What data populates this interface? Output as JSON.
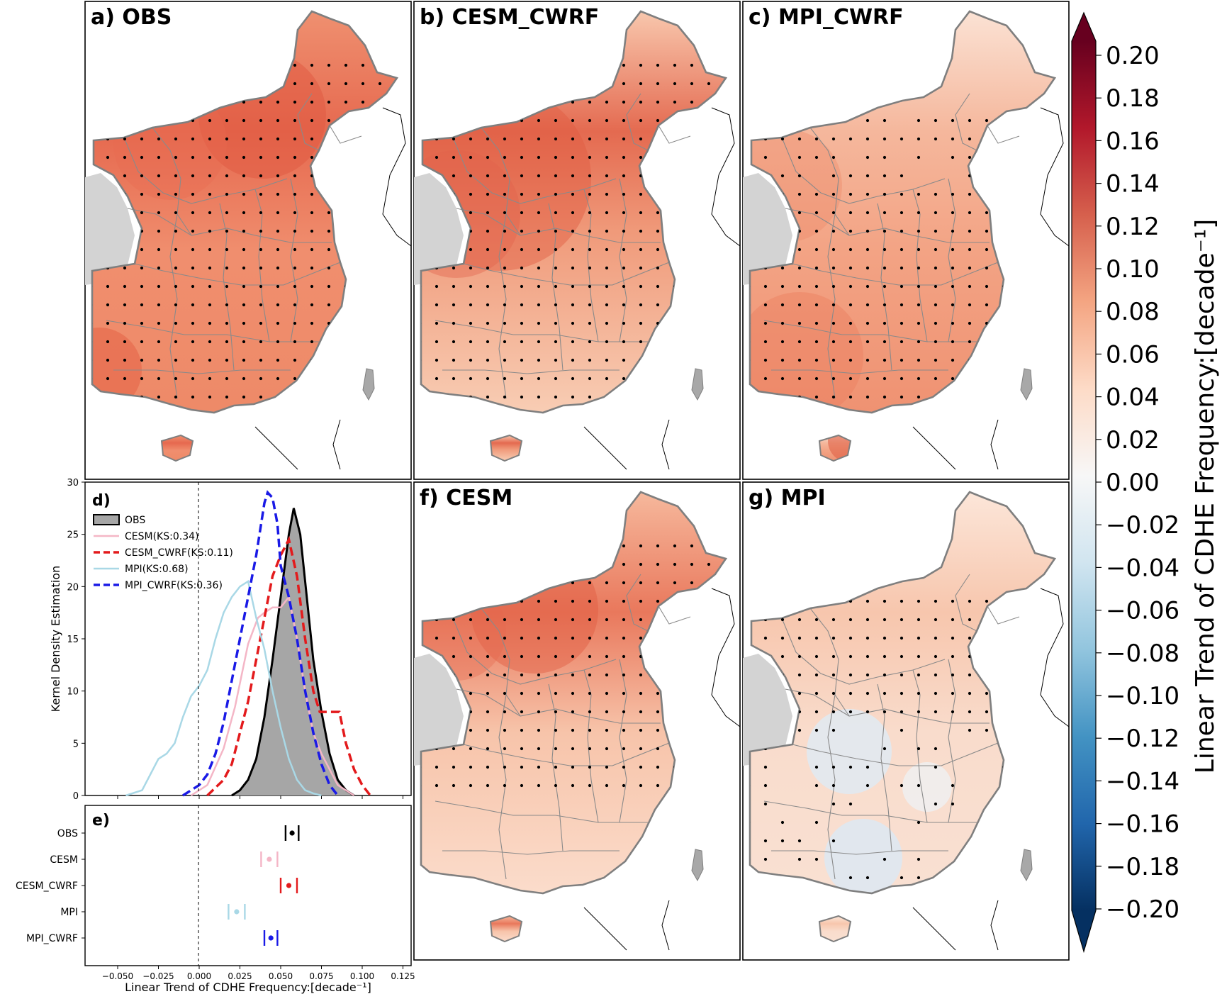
{
  "figure": {
    "panels": [
      {
        "id": "a",
        "title": "a) OBS",
        "map_style": "obs"
      },
      {
        "id": "b",
        "title": "b) CESM_CWRF",
        "map_style": "cesm_cwrf"
      },
      {
        "id": "c",
        "title": "c) MPI_CWRF",
        "map_style": "mpi_cwrf"
      },
      {
        "id": "f",
        "title": "f) CESM",
        "map_style": "cesm"
      },
      {
        "id": "g",
        "title": "g) MPI",
        "map_style": "mpi"
      }
    ],
    "colorbar": {
      "label": "Linear Trend of CDHE Frequency:[decade⁻¹]",
      "ticks": [
        "0.20",
        "0.18",
        "0.16",
        "0.14",
        "0.12",
        "0.10",
        "0.08",
        "0.06",
        "0.04",
        "0.02",
        "0.00",
        "−0.02",
        "−0.04",
        "−0.06",
        "−0.08",
        "−0.10",
        "−0.12",
        "−0.14",
        "−0.16",
        "−0.18",
        "−0.20"
      ],
      "colormap": "RdBu_r",
      "range": [
        -0.2,
        0.2
      ]
    },
    "colors": {
      "obs": "#000000",
      "cesm": "#f4b6c6",
      "cesm_cwrf": "#e31a1c",
      "mpi": "#a9d8e6",
      "mpi_cwrf": "#1a1ae6",
      "obs_fill": "#a6a6a6",
      "land_gray": "#d3d3d3"
    }
  },
  "chart_data": [
    {
      "panel": "d",
      "type": "line",
      "title": "d)",
      "xlabel": "",
      "ylabel": "Kernel Density Estimation",
      "xlim": [
        -0.07,
        0.13
      ],
      "ylim": [
        0,
        30
      ],
      "yticks": [
        "0",
        "5",
        "10",
        "15",
        "20",
        "25",
        "30"
      ],
      "legend_placement": "top-left",
      "series": [
        {
          "name": "OBS",
          "style": "filled",
          "color_key": "obs",
          "x": [
            0.02,
            0.025,
            0.03,
            0.035,
            0.04,
            0.045,
            0.05,
            0.055,
            0.058,
            0.062,
            0.066,
            0.07,
            0.075,
            0.08,
            0.085,
            0.09,
            0.095
          ],
          "y": [
            0,
            0.5,
            1.5,
            3.5,
            7.5,
            13,
            19,
            25,
            27.5,
            25,
            19,
            13,
            8,
            4,
            1.5,
            0.5,
            0
          ]
        },
        {
          "name": "CESM(KS:0.34)",
          "style": "solid",
          "color_key": "cesm",
          "x": [
            -0.005,
            0.005,
            0.015,
            0.022,
            0.03,
            0.036,
            0.04,
            0.045,
            0.05,
            0.055,
            0.06,
            0.065,
            0.07,
            0.075,
            0.08,
            0.085,
            0.095
          ],
          "y": [
            0,
            1,
            4.5,
            8.5,
            14.5,
            17,
            17.5,
            18,
            18,
            19,
            15,
            10,
            6,
            4,
            2.5,
            1,
            0
          ]
        },
        {
          "name": "CESM_CWRF(KS:0.11)",
          "style": "dashed",
          "color_key": "cesm_cwrf",
          "x": [
            0.005,
            0.015,
            0.02,
            0.025,
            0.03,
            0.035,
            0.04,
            0.045,
            0.05,
            0.055,
            0.06,
            0.065,
            0.07,
            0.074,
            0.078,
            0.082,
            0.086,
            0.09,
            0.095,
            0.1,
            0.105
          ],
          "y": [
            0,
            1.5,
            3,
            6,
            9,
            13,
            17,
            21,
            23,
            24.5,
            21,
            15,
            10,
            8,
            8,
            8,
            8,
            5,
            2.5,
            1,
            0
          ]
        },
        {
          "name": "MPI(KS:0.68)",
          "style": "solid",
          "color_key": "mpi",
          "x": [
            -0.045,
            -0.035,
            -0.03,
            -0.025,
            -0.02,
            -0.015,
            -0.01,
            -0.005,
            0,
            0.005,
            0.01,
            0.015,
            0.02,
            0.025,
            0.03,
            0.035,
            0.04,
            0.045,
            0.05,
            0.055,
            0.06,
            0.065,
            0.07,
            0.075
          ],
          "y": [
            0,
            0.5,
            2,
            3.5,
            4,
            5,
            7.5,
            9.5,
            10.5,
            12,
            15,
            17.5,
            19,
            20,
            20.5,
            17,
            14,
            10,
            6.5,
            3.5,
            1.5,
            0.5,
            0.2,
            0
          ]
        },
        {
          "name": "MPI_CWRF(KS:0.36)",
          "style": "dashed",
          "color_key": "mpi_cwrf",
          "x": [
            -0.01,
            0,
            0.005,
            0.01,
            0.015,
            0.02,
            0.025,
            0.03,
            0.035,
            0.04,
            0.042,
            0.045,
            0.048,
            0.05,
            0.055,
            0.06,
            0.065,
            0.07,
            0.075,
            0.08,
            0.085
          ],
          "y": [
            0,
            1,
            2,
            4,
            7,
            11,
            15,
            19,
            23,
            28,
            29,
            28.5,
            26,
            22,
            19,
            15,
            10,
            6,
            3,
            1,
            0
          ]
        }
      ]
    },
    {
      "panel": "e",
      "type": "scatter",
      "title": "e)",
      "xlabel": "Linear Trend of CDHE Frequency:[decade⁻¹]",
      "xlim": [
        -0.07,
        0.13
      ],
      "xticks": [
        "−0.050",
        "−0.025",
        "0.000",
        "0.025",
        "0.050",
        "0.075",
        "0.100",
        "0.125"
      ],
      "categories": [
        "OBS",
        "CESM",
        "CESM_CWRF",
        "MPI",
        "MPI_CWRF"
      ],
      "series": [
        {
          "category": "OBS",
          "color_key": "obs",
          "mean": 0.057,
          "low": 0.053,
          "high": 0.061
        },
        {
          "category": "CESM",
          "color_key": "cesm",
          "mean": 0.043,
          "low": 0.038,
          "high": 0.048
        },
        {
          "category": "CESM_CWRF",
          "color_key": "cesm_cwrf",
          "mean": 0.055,
          "low": 0.05,
          "high": 0.06
        },
        {
          "category": "MPI",
          "color_key": "mpi",
          "mean": 0.023,
          "low": 0.018,
          "high": 0.028
        },
        {
          "category": "MPI_CWRF",
          "color_key": "mpi_cwrf",
          "mean": 0.044,
          "low": 0.04,
          "high": 0.048
        }
      ]
    }
  ]
}
